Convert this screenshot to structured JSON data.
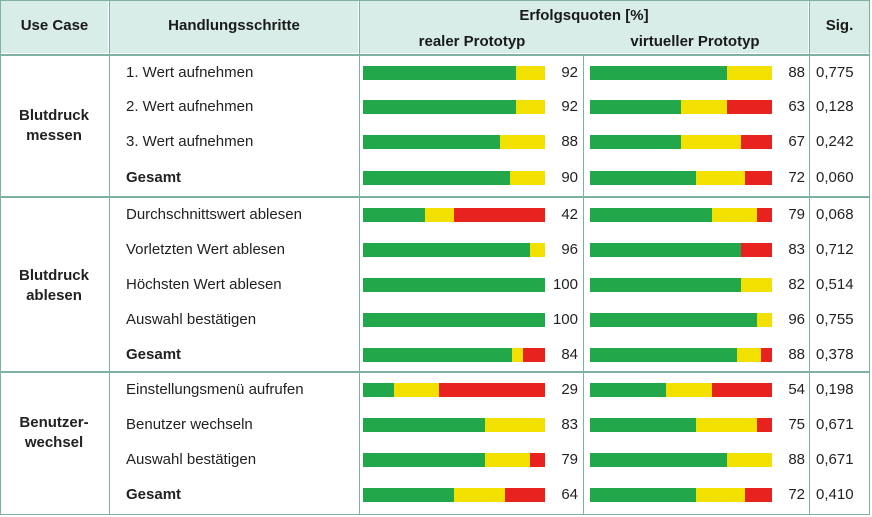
{
  "header": {
    "use_case": "Use Case",
    "steps": "Handlungsschritte",
    "rates": "Erfolgsquoten [%]",
    "real": "realer Prototyp",
    "virtual": "virtueller Prototyp",
    "sig": "Sig."
  },
  "colors": {
    "green": "#22a84a",
    "yellow": "#f2e000",
    "red": "#e8221f"
  },
  "chart_data": {
    "type": "bar",
    "orientation": "horizontal-stacked",
    "series": [
      {
        "name": "realer Prototyp"
      },
      {
        "name": "virtueller Prototyp"
      }
    ],
    "groups": [
      {
        "label": "Blutdruck messen",
        "rows": [
          {
            "step": "1. Wert aufnehmen",
            "bold": false,
            "real": {
              "value": 92,
              "green": 84,
              "yellow": 16,
              "red": 0
            },
            "virtual": {
              "value": 88,
              "green": 75,
              "yellow": 25,
              "red": 0
            },
            "sig": "0,775"
          },
          {
            "step": "2. Wert aufnehmen",
            "bold": false,
            "real": {
              "value": 92,
              "green": 84,
              "yellow": 16,
              "red": 0
            },
            "virtual": {
              "value": 63,
              "green": 50,
              "yellow": 25,
              "red": 25
            },
            "sig": "0,128"
          },
          {
            "step": "3. Wert aufnehmen",
            "bold": false,
            "real": {
              "value": 88,
              "green": 75,
              "yellow": 25,
              "red": 0
            },
            "virtual": {
              "value": 67,
              "green": 50,
              "yellow": 33,
              "red": 17
            },
            "sig": "0,242"
          },
          {
            "step": "Gesamt",
            "bold": true,
            "real": {
              "value": 90,
              "green": 81,
              "yellow": 19,
              "red": 0
            },
            "virtual": {
              "value": 72,
              "green": 58,
              "yellow": 27,
              "red": 15
            },
            "sig": "0,060"
          }
        ]
      },
      {
        "label": "Blutdruck ablesen",
        "rows": [
          {
            "step": "Durchschnittswert ablesen",
            "bold": false,
            "real": {
              "value": 42,
              "green": 34,
              "yellow": 16,
              "red": 50
            },
            "virtual": {
              "value": 79,
              "green": 67,
              "yellow": 25,
              "red": 8
            },
            "sig": "0,068"
          },
          {
            "step": "Vorletzten Wert ablesen",
            "bold": false,
            "real": {
              "value": 96,
              "green": 92,
              "yellow": 8,
              "red": 0
            },
            "virtual": {
              "value": 83,
              "green": 83,
              "yellow": 0,
              "red": 17
            },
            "sig": "0,712"
          },
          {
            "step": "Höchsten Wert ablesen",
            "bold": false,
            "real": {
              "value": 100,
              "green": 100,
              "yellow": 0,
              "red": 0
            },
            "virtual": {
              "value": 82,
              "green": 83,
              "yellow": 17,
              "red": 0
            },
            "sig": "0,514"
          },
          {
            "step": "Auswahl bestätigen",
            "bold": false,
            "real": {
              "value": 100,
              "green": 100,
              "yellow": 0,
              "red": 0
            },
            "virtual": {
              "value": 96,
              "green": 92,
              "yellow": 8,
              "red": 0
            },
            "sig": "0,755"
          },
          {
            "step": "Gesamt",
            "bold": true,
            "real": {
              "value": 84,
              "green": 82,
              "yellow": 6,
              "red": 12
            },
            "virtual": {
              "value": 88,
              "green": 81,
              "yellow": 13,
              "red": 6
            },
            "sig": "0,378"
          }
        ]
      },
      {
        "label": "Benutzer-wechsel",
        "rows": [
          {
            "step": "Einstellungsmenü aufrufen",
            "bold": false,
            "real": {
              "value": 29,
              "green": 17,
              "yellow": 25,
              "red": 58
            },
            "virtual": {
              "value": 54,
              "green": 42,
              "yellow": 25,
              "red": 33
            },
            "sig": "0,198"
          },
          {
            "step": "Benutzer wechseln",
            "bold": false,
            "real": {
              "value": 83,
              "green": 67,
              "yellow": 33,
              "red": 0
            },
            "virtual": {
              "value": 75,
              "green": 58,
              "yellow": 34,
              "red": 8
            },
            "sig": "0,671"
          },
          {
            "step": "Auswahl bestätigen",
            "bold": false,
            "real": {
              "value": 79,
              "green": 67,
              "yellow": 25,
              "red": 8
            },
            "virtual": {
              "value": 88,
              "green": 75,
              "yellow": 25,
              "red": 0
            },
            "sig": "0,671"
          },
          {
            "step": "Gesamt",
            "bold": true,
            "real": {
              "value": 64,
              "green": 50,
              "yellow": 28,
              "red": 22
            },
            "virtual": {
              "value": 72,
              "green": 58,
              "yellow": 27,
              "red": 15
            },
            "sig": "0,410"
          }
        ]
      }
    ]
  }
}
